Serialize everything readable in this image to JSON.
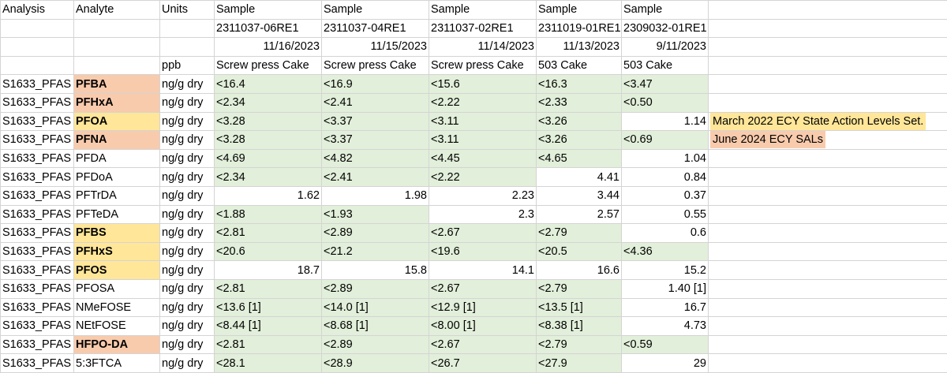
{
  "header": {
    "analysis": "Analysis",
    "analyte": "Analyte",
    "units": "Units",
    "sample_label": "Sample",
    "ppb": "ppb",
    "samples": [
      {
        "id": "2311037-06RE1",
        "date": "11/16/2023",
        "matrix": "Screw press Cake"
      },
      {
        "id": "2311037-04RE1",
        "date": "11/15/2023",
        "matrix": "Screw press Cake"
      },
      {
        "id": "2311037-02RE1",
        "date": "11/14/2023",
        "matrix": "Screw press Cake"
      },
      {
        "id": "2311019-01RE1",
        "date": "11/13/2023",
        "matrix": "503 Cake"
      },
      {
        "id": "2309032-01RE1",
        "date": "9/11/2023",
        "matrix": "503 Cake"
      }
    ]
  },
  "notes": {
    "pfoa": "March 2022 ECY State Action Levels Set.",
    "pfna": "June 2024 ECY SALs"
  },
  "colors": {
    "nondetect_green": "#e2efda",
    "sal_2024_orange": "#f8cbad",
    "sal_2022_yellow": "#ffe699"
  },
  "rows": [
    {
      "analysis": "S1633_PFAS",
      "analyte": "PFBA",
      "units": "ng/g dry",
      "values": [
        "<16.4",
        "<16.9",
        "<15.6",
        "<16.3",
        "<3.47"
      ]
    },
    {
      "analysis": "S1633_PFAS",
      "analyte": "PFHxA",
      "units": "ng/g dry",
      "values": [
        "<2.34",
        "<2.41",
        "<2.22",
        "<2.33",
        "<0.50"
      ]
    },
    {
      "analysis": "S1633_PFAS",
      "analyte": "PFOA",
      "units": "ng/g dry",
      "values": [
        "<3.28",
        "<3.37",
        "<3.11",
        "<3.26",
        "1.14"
      ]
    },
    {
      "analysis": "S1633_PFAS",
      "analyte": "PFNA",
      "units": "ng/g dry",
      "values": [
        "<3.28",
        "<3.37",
        "<3.11",
        "<3.26",
        "<0.69"
      ]
    },
    {
      "analysis": "S1633_PFAS",
      "analyte": "PFDA",
      "units": "ng/g dry",
      "values": [
        "<4.69",
        "<4.82",
        "<4.45",
        "<4.65",
        "1.04"
      ]
    },
    {
      "analysis": "S1633_PFAS",
      "analyte": "PFDoA",
      "units": "ng/g dry",
      "values": [
        "<2.34",
        "<2.41",
        "<2.22",
        "4.41",
        "0.84"
      ]
    },
    {
      "analysis": "S1633_PFAS",
      "analyte": "PFTrDA",
      "units": "ng/g dry",
      "values": [
        "1.62",
        "1.98",
        "2.23",
        "3.44",
        "0.37"
      ]
    },
    {
      "analysis": "S1633_PFAS",
      "analyte": "PFTeDA",
      "units": "ng/g dry",
      "values": [
        "<1.88",
        "<1.93",
        "2.3",
        "2.57",
        "0.55"
      ]
    },
    {
      "analysis": "S1633_PFAS",
      "analyte": "PFBS",
      "units": "ng/g dry",
      "values": [
        "<2.81",
        "<2.89",
        "<2.67",
        "<2.79",
        "0.6"
      ]
    },
    {
      "analysis": "S1633_PFAS",
      "analyte": "PFHxS",
      "units": "ng/g dry",
      "values": [
        "<20.6",
        "<21.2",
        "<19.6",
        "<20.5",
        "<4.36"
      ]
    },
    {
      "analysis": "S1633_PFAS",
      "analyte": "PFOS",
      "units": "ng/g dry",
      "values": [
        "18.7",
        "15.8",
        "14.1",
        "16.6",
        "15.2"
      ]
    },
    {
      "analysis": "S1633_PFAS",
      "analyte": "PFOSA",
      "units": "ng/g dry",
      "values": [
        "<2.81",
        "<2.89",
        "<2.67",
        "<2.79",
        "1.40 [1]"
      ]
    },
    {
      "analysis": "S1633_PFAS",
      "analyte": "NMeFOSE",
      "units": "ng/g dry",
      "values": [
        "<13.6 [1]",
        "<14.0 [1]",
        "<12.9 [1]",
        "<13.5 [1]",
        "16.7"
      ]
    },
    {
      "analysis": "S1633_PFAS",
      "analyte": "NEtFOSE",
      "units": "ng/g dry",
      "values": [
        "<8.44 [1]",
        "<8.68 [1]",
        "<8.00 [1]",
        "<8.38 [1]",
        "4.73"
      ]
    },
    {
      "analysis": "S1633_PFAS",
      "analyte": "HFPO-DA",
      "units": "ng/g dry",
      "values": [
        "<2.81",
        "<2.89",
        "<2.67",
        "<2.79",
        "<0.59"
      ]
    },
    {
      "analysis": "S1633_PFAS",
      "analyte": "5:3FTCA",
      "units": "ng/g dry",
      "values": [
        "<28.1",
        "<28.9",
        "<26.7",
        "<27.9",
        "29"
      ]
    }
  ]
}
